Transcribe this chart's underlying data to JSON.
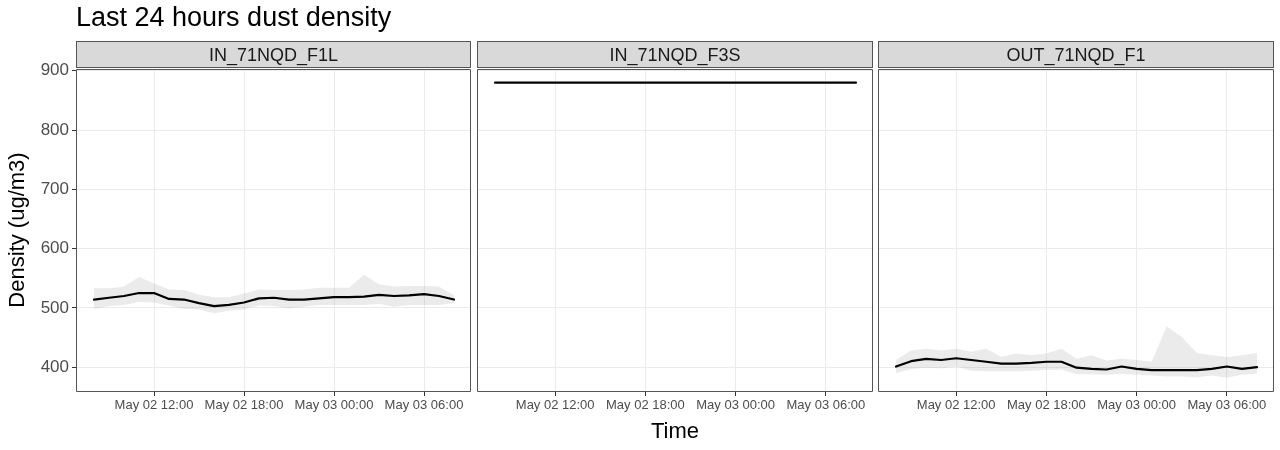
{
  "chart_data": [
    {
      "type": "line",
      "title": "Last 24 hours dust density",
      "subtitle": "IN_71NQD_F1L",
      "ylabel": "Density (ug/m3)",
      "grid": true,
      "legend": false,
      "x": [
        "--05-02T08:00",
        "--05-02T09:00",
        "--05-02T10:00",
        "--05-02T11:00",
        "--05-02T12:00",
        "--05-02T13:00",
        "--05-02T14:00",
        "--05-02T15:00",
        "--05-02T16:00",
        "--05-02T17:00",
        "--05-02T18:00",
        "--05-02T19:00",
        "--05-02T20:00",
        "--05-02T21:00",
        "--05-02T22:00",
        "--05-02T23:00",
        "--05-03T00:00",
        "--05-03T01:00",
        "--05-03T02:00",
        "--05-03T03:00",
        "--05-03T04:00",
        "--05-03T05:00",
        "--05-03T06:00",
        "--05-03T07:00",
        "--05-03T08:00"
      ],
      "xlim": [
        "--05-02T06:48",
        "--05-03T09:08"
      ],
      "xticks": [
        {
          "value": "--05-02T12:00",
          "label": "May 02 12:00"
        },
        {
          "value": "--05-02T18:00",
          "label": "May 02 18:00"
        },
        {
          "value": "--05-03T00:00",
          "label": "May 03 00:00"
        },
        {
          "value": "--05-03T06:00",
          "label": "May 03 06:00"
        }
      ],
      "ylim": [
        358,
        903
      ],
      "yticks": [
        400,
        500,
        600,
        700,
        800,
        900
      ],
      "series": [
        {
          "color": "#000000",
          "values": [
            514,
            517,
            520,
            525,
            525,
            515,
            514,
            508,
            503,
            505,
            509,
            516,
            517,
            514,
            514,
            516,
            518,
            518,
            519,
            522,
            520,
            521,
            523,
            520,
            514
          ],
          "lower": [
            498,
            503,
            505,
            510,
            509,
            504,
            498,
            497,
            491,
            495,
            497,
            504,
            503,
            499,
            502,
            505,
            505,
            505,
            505,
            507,
            502,
            505,
            505,
            505,
            508
          ],
          "upper": [
            533,
            533,
            536,
            552,
            541,
            531,
            530,
            522,
            518,
            518,
            524,
            531,
            530,
            530,
            531,
            534,
            534,
            534,
            556,
            540,
            536,
            537,
            537,
            536,
            521
          ]
        }
      ]
    },
    {
      "type": "line",
      "subtitle": "IN_71NQD_F3S",
      "xlabel": "Time",
      "grid": true,
      "legend": false,
      "tick_labels": "x",
      "x": [
        "--05-02T08:00",
        "--05-02T09:00",
        "--05-02T10:00",
        "--05-02T11:00",
        "--05-02T12:00",
        "--05-02T13:00",
        "--05-02T14:00",
        "--05-02T15:00",
        "--05-02T16:00",
        "--05-02T17:00",
        "--05-02T18:00",
        "--05-02T19:00",
        "--05-02T20:00",
        "--05-02T21:00",
        "--05-02T22:00",
        "--05-02T23:00",
        "--05-03T00:00",
        "--05-03T01:00",
        "--05-03T02:00",
        "--05-03T03:00",
        "--05-03T04:00",
        "--05-03T05:00",
        "--05-03T06:00",
        "--05-03T07:00",
        "--05-03T08:00"
      ],
      "xlim": [
        "--05-02T06:48",
        "--05-03T09:08"
      ],
      "xticks": [
        {
          "value": "--05-02T12:00",
          "label": "May 02 12:00"
        },
        {
          "value": "--05-02T18:00",
          "label": "May 02 18:00"
        },
        {
          "value": "--05-03T00:00",
          "label": "May 03 00:00"
        },
        {
          "value": "--05-03T06:00",
          "label": "May 03 06:00"
        }
      ],
      "ylim": [
        358,
        903
      ],
      "yticks": [
        400,
        500,
        600,
        700,
        800,
        900
      ],
      "series": [
        {
          "color": "#000000",
          "values": [
            880,
            880,
            880,
            880,
            880,
            880,
            880,
            880,
            880,
            880,
            880,
            880,
            880,
            880,
            880,
            880,
            880,
            880,
            880,
            880,
            880,
            880,
            880,
            880,
            880
          ]
        }
      ]
    },
    {
      "type": "line",
      "subtitle": "OUT_71NQD_F1",
      "grid": true,
      "legend": false,
      "tick_labels": "x",
      "x": [
        "--05-02T08:00",
        "--05-02T09:00",
        "--05-02T10:00",
        "--05-02T11:00",
        "--05-02T12:00",
        "--05-02T13:00",
        "--05-02T14:00",
        "--05-02T15:00",
        "--05-02T16:00",
        "--05-02T17:00",
        "--05-02T18:00",
        "--05-02T19:00",
        "--05-02T20:00",
        "--05-02T21:00",
        "--05-02T22:00",
        "--05-02T23:00",
        "--05-03T00:00",
        "--05-03T01:00",
        "--05-03T02:00",
        "--05-03T03:00",
        "--05-03T04:00",
        "--05-03T05:00",
        "--05-03T06:00",
        "--05-03T07:00",
        "--05-03T08:00"
      ],
      "xlim": [
        "--05-02T06:48",
        "--05-03T09:08"
      ],
      "xticks": [
        {
          "value": "--05-02T12:00",
          "label": "May 02 12:00"
        },
        {
          "value": "--05-02T18:00",
          "label": "May 02 18:00"
        },
        {
          "value": "--05-03T00:00",
          "label": "May 03 00:00"
        },
        {
          "value": "--05-03T06:00",
          "label": "May 03 06:00"
        }
      ],
      "ylim": [
        358,
        903
      ],
      "yticks": [
        400,
        500,
        600,
        700,
        800,
        900
      ],
      "series": [
        {
          "color": "#000000",
          "values": [
            401,
            410,
            414,
            412,
            415,
            412,
            409,
            406,
            406,
            407,
            409,
            409,
            399,
            397,
            396,
            401,
            397,
            395,
            395,
            395,
            395,
            397,
            401,
            397,
            400
          ],
          "lower": [
            390,
            397,
            399,
            398,
            401,
            394,
            393,
            393,
            393,
            394,
            395,
            396,
            388,
            388,
            387,
            389,
            387,
            386,
            384,
            384,
            383,
            386,
            382,
            387,
            389
          ],
          "upper": [
            412,
            428,
            431,
            428,
            431,
            426,
            431,
            417,
            423,
            420,
            423,
            431,
            414,
            420,
            411,
            414,
            412,
            409,
            469,
            451,
            424,
            420,
            417,
            420,
            424
          ]
        }
      ]
    }
  ]
}
